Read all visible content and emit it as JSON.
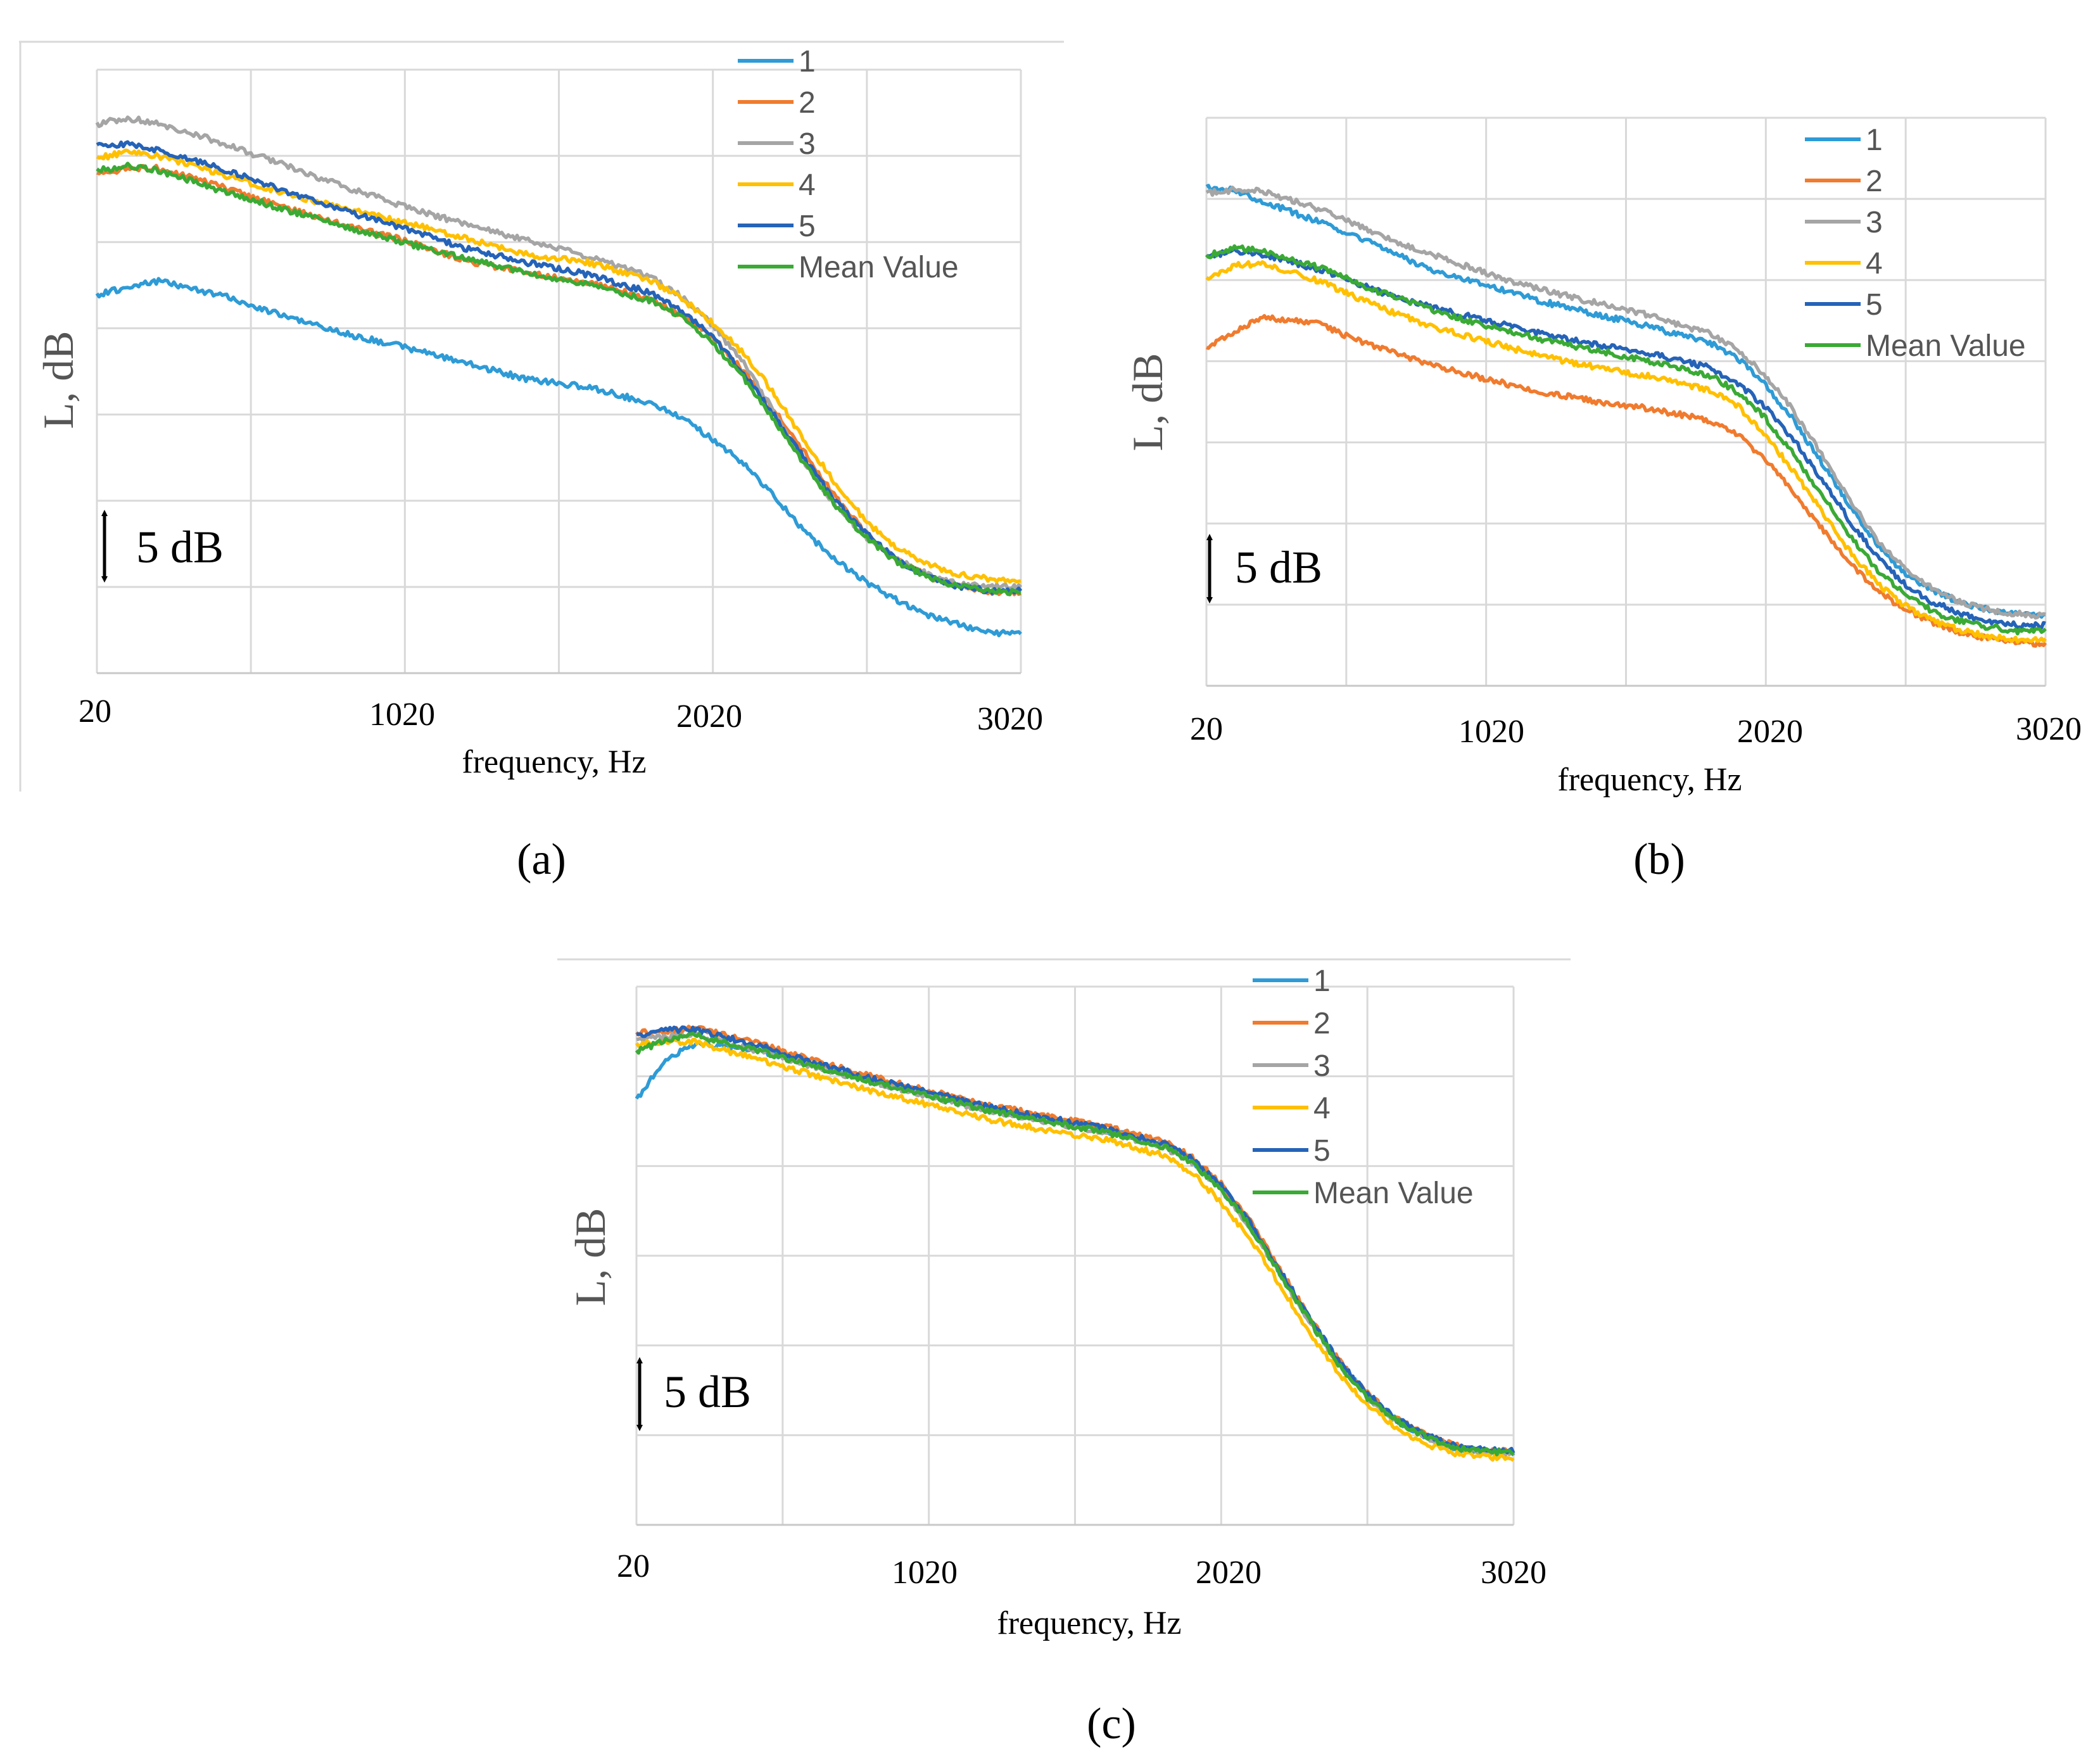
{
  "chart_data": [
    {
      "panel": "a",
      "type": "line",
      "ylabel": "L, dB",
      "xlabel": "frequency, Hz",
      "x_ticks": [
        "20",
        "1020",
        "2020",
        "3020"
      ],
      "xlim": [
        20,
        3020
      ],
      "ylim": [
        0,
        30
      ],
      "scale_bar": "5 dB",
      "grid": true,
      "legend_placement": "top-right",
      "series": [
        {
          "name": "1",
          "color": "#2e9bd6",
          "x": [
            20,
            120,
            220,
            420,
            620,
            820,
            1020,
            1220,
            1420,
            1620,
            1820,
            1920,
            2020,
            2120,
            2220,
            2320,
            2420,
            2520,
            2620,
            2720,
            2820,
            2920,
            3020
          ],
          "values": [
            18.8,
            19.2,
            19.5,
            18.8,
            17.8,
            16.9,
            16.2,
            15.4,
            14.6,
            14.2,
            13.4,
            12.7,
            11.6,
            10.4,
            8.8,
            7.0,
            5.6,
            4.5,
            3.6,
            2.9,
            2.4,
            2.0,
            2.0
          ]
        },
        {
          "name": "2",
          "color": "#f07b2e",
          "x": [
            20,
            120,
            220,
            420,
            620,
            820,
            1020,
            1220,
            1420,
            1620,
            1820,
            1920,
            2020,
            2120,
            2220,
            2320,
            2420,
            2520,
            2620,
            2720,
            2820,
            2920,
            3020
          ],
          "values": [
            24.8,
            25.1,
            25.1,
            24.2,
            23.2,
            22.3,
            21.5,
            20.5,
            19.9,
            19.4,
            18.6,
            17.8,
            16.7,
            15.0,
            13.1,
            10.9,
            8.7,
            6.9,
            5.6,
            4.8,
            4.3,
            4.0,
            4.0
          ]
        },
        {
          "name": "3",
          "color": "#a5a5a5",
          "x": [
            20,
            120,
            220,
            420,
            620,
            820,
            1020,
            1220,
            1420,
            1620,
            1820,
            1920,
            2020,
            2120,
            2220,
            2320,
            2420,
            2520,
            2620,
            2720,
            2820,
            2920,
            3020
          ],
          "values": [
            27.3,
            27.6,
            27.3,
            26.4,
            25.3,
            24.2,
            23.2,
            22.3,
            21.5,
            20.7,
            19.7,
            18.7,
            17.3,
            15.4,
            13.0,
            10.4,
            8.3,
            6.7,
            5.6,
            4.9,
            4.4,
            4.3,
            4.3
          ]
        },
        {
          "name": "4",
          "color": "#ffc000",
          "x": [
            20,
            120,
            220,
            420,
            620,
            820,
            1020,
            1220,
            1420,
            1620,
            1820,
            1920,
            2020,
            2120,
            2220,
            2320,
            2420,
            2520,
            2620,
            2720,
            2820,
            2920,
            3020
          ],
          "values": [
            25.6,
            25.9,
            25.7,
            24.8,
            23.9,
            23.1,
            22.4,
            21.6,
            20.8,
            20.4,
            19.5,
            18.6,
            17.4,
            15.9,
            13.9,
            11.5,
            9.4,
            7.5,
            6.2,
            5.4,
            4.9,
            4.7,
            4.6
          ]
        },
        {
          "name": "5",
          "color": "#2563b8",
          "x": [
            20,
            120,
            220,
            420,
            620,
            820,
            1020,
            1220,
            1420,
            1620,
            1820,
            1920,
            2020,
            2120,
            2220,
            2320,
            2420,
            2520,
            2620,
            2720,
            2820,
            2920,
            3020
          ],
          "values": [
            26.2,
            26.3,
            26.0,
            25.1,
            24.0,
            23.0,
            22.1,
            21.1,
            20.4,
            19.8,
            18.9,
            18.0,
            16.7,
            14.9,
            12.8,
            10.6,
            8.5,
            6.9,
            5.6,
            4.8,
            4.3,
            4.1,
            4.1
          ]
        },
        {
          "name": "Mean Value",
          "color": "#3aaa35",
          "x": [
            20,
            120,
            220,
            420,
            620,
            820,
            1020,
            1220,
            1420,
            1620,
            1820,
            1920,
            2020,
            2120,
            2220,
            2320,
            2420,
            2520,
            2620,
            2720,
            2820,
            2920,
            3020
          ],
          "values": [
            25.0,
            25.2,
            25.0,
            24.0,
            23.1,
            22.2,
            21.4,
            20.6,
            19.9,
            19.3,
            18.5,
            17.7,
            16.4,
            14.7,
            12.5,
            10.3,
            8.3,
            6.7,
            5.5,
            4.8,
            4.3,
            4.1,
            4.0
          ]
        }
      ]
    },
    {
      "panel": "b",
      "type": "line",
      "ylabel": "L, dB",
      "xlabel": "frequency, Hz",
      "x_ticks": [
        "20",
        "1020",
        "2020",
        "3020"
      ],
      "xlim": [
        20,
        3020
      ],
      "ylim": [
        0,
        30
      ],
      "scale_bar": "5 dB",
      "grid": true,
      "legend_placement": "top-right",
      "series": [
        {
          "name": "1",
          "color": "#2e9bd6",
          "x": [
            20,
            120,
            220,
            420,
            620,
            820,
            1020,
            1220,
            1420,
            1620,
            1820,
            1920,
            2020,
            2120,
            2220,
            2320,
            2420,
            2520,
            2620,
            2720,
            2820,
            2920,
            3020
          ],
          "values": [
            26.3,
            26.2,
            25.6,
            24.5,
            23.3,
            22.0,
            21.2,
            20.3,
            19.6,
            18.9,
            18.1,
            17.3,
            15.9,
            14.0,
            11.8,
            9.5,
            7.4,
            5.9,
            5.0,
            4.4,
            4.0,
            3.8,
            3.7
          ]
        },
        {
          "name": "2",
          "color": "#f07b2e",
          "x": [
            20,
            120,
            220,
            420,
            620,
            820,
            1020,
            1220,
            1420,
            1620,
            1820,
            1920,
            2020,
            2120,
            2220,
            2320,
            2420,
            2520,
            2620,
            2720,
            2820,
            2920,
            3020
          ],
          "values": [
            17.8,
            18.7,
            19.5,
            19.1,
            17.9,
            17.0,
            16.2,
            15.5,
            15.0,
            14.6,
            14.0,
            13.3,
            11.9,
            10.2,
            8.3,
            6.5,
            5.0,
            4.0,
            3.3,
            2.8,
            2.5,
            2.3,
            2.2
          ]
        },
        {
          "name": "3",
          "color": "#a5a5a5",
          "x": [
            20,
            120,
            220,
            420,
            620,
            820,
            1020,
            1220,
            1420,
            1620,
            1820,
            1920,
            2020,
            2120,
            2220,
            2320,
            2420,
            2520,
            2620,
            2720,
            2820,
            2920,
            3020
          ],
          "values": [
            26.0,
            26.2,
            26.1,
            25.2,
            23.9,
            22.8,
            21.8,
            20.9,
            20.2,
            19.5,
            18.6,
            17.7,
            16.4,
            14.5,
            12.2,
            9.8,
            7.7,
            6.1,
            5.1,
            4.4,
            4.0,
            3.8,
            3.7
          ]
        },
        {
          "name": "4",
          "color": "#ffc000",
          "x": [
            20,
            120,
            220,
            420,
            620,
            820,
            1020,
            1220,
            1420,
            1620,
            1820,
            1920,
            2020,
            2120,
            2220,
            2320,
            2420,
            2520,
            2620,
            2720,
            2820,
            2920,
            3020
          ],
          "values": [
            21.5,
            22.2,
            22.3,
            21.4,
            20.1,
            19.0,
            18.2,
            17.4,
            16.8,
            16.3,
            15.6,
            14.8,
            13.2,
            11.3,
            9.2,
            7.1,
            5.4,
            4.2,
            3.4,
            2.9,
            2.6,
            2.4,
            2.4
          ]
        },
        {
          "name": "5",
          "color": "#2563b8",
          "x": [
            20,
            120,
            220,
            420,
            620,
            820,
            1020,
            1220,
            1420,
            1620,
            1820,
            1920,
            2020,
            2120,
            2220,
            2320,
            2420,
            2520,
            2620,
            2720,
            2820,
            2920,
            3020
          ],
          "values": [
            22.6,
            23.0,
            22.8,
            22.0,
            20.9,
            20.0,
            19.3,
            18.6,
            18.0,
            17.5,
            16.8,
            16.0,
            14.7,
            13.0,
            10.9,
            8.7,
            6.8,
            5.3,
            4.4,
            3.8,
            3.4,
            3.2,
            3.2
          ]
        },
        {
          "name": "Mean Value",
          "color": "#3aaa35",
          "x": [
            20,
            120,
            220,
            420,
            620,
            820,
            1020,
            1220,
            1420,
            1620,
            1820,
            1920,
            2020,
            2120,
            2220,
            2320,
            2420,
            2520,
            2620,
            2720,
            2820,
            2920,
            3020
          ],
          "values": [
            22.7,
            23.1,
            23.0,
            22.1,
            20.9,
            19.9,
            19.0,
            18.3,
            17.7,
            17.1,
            16.4,
            15.5,
            14.1,
            12.2,
            10.1,
            7.9,
            6.1,
            4.8,
            3.9,
            3.4,
            3.1,
            2.9,
            2.9
          ]
        }
      ]
    },
    {
      "panel": "c",
      "type": "line",
      "ylabel": "L, dB",
      "xlabel": "frequency, Hz",
      "x_ticks": [
        "20",
        "1020",
        "2020",
        "3020"
      ],
      "xlim": [
        20,
        3020
      ],
      "ylim": [
        0,
        30
      ],
      "scale_bar": "5 dB",
      "grid": true,
      "legend_placement": "top-right",
      "series": [
        {
          "name": "1",
          "color": "#2e9bd6",
          "x": [
            20,
            120,
            220,
            420,
            620,
            820,
            1020,
            1220,
            1420,
            1620,
            1820,
            1920,
            2020,
            2120,
            2220,
            2320,
            2420,
            2520,
            2620,
            2720,
            2820,
            2920,
            3020
          ],
          "values": [
            23.7,
            26.0,
            26.8,
            26.5,
            25.7,
            24.8,
            24.0,
            23.2,
            22.6,
            22.0,
            21.2,
            20.3,
            18.8,
            16.7,
            14.1,
            11.5,
            9.1,
            7.2,
            5.8,
            4.9,
            4.3,
            4.1,
            4.0
          ]
        },
        {
          "name": "2",
          "color": "#f07b2e",
          "x": [
            20,
            120,
            220,
            420,
            620,
            820,
            1020,
            1220,
            1420,
            1620,
            1820,
            1920,
            2020,
            2120,
            2220,
            2320,
            2420,
            2520,
            2620,
            2720,
            2820,
            2920,
            3020
          ],
          "values": [
            27.4,
            27.5,
            27.7,
            26.9,
            25.9,
            25.0,
            24.2,
            23.4,
            22.8,
            22.2,
            21.4,
            20.5,
            19.0,
            16.9,
            14.3,
            11.6,
            9.2,
            7.3,
            5.9,
            5.0,
            4.4,
            4.2,
            4.1
          ]
        },
        {
          "name": "3",
          "color": "#a5a5a5",
          "x": [
            20,
            120,
            220,
            420,
            620,
            820,
            1020,
            1220,
            1420,
            1620,
            1820,
            1920,
            2020,
            2120,
            2220,
            2320,
            2420,
            2520,
            2620,
            2720,
            2820,
            2920,
            3020
          ],
          "values": [
            27.0,
            27.2,
            27.3,
            26.5,
            25.6,
            24.7,
            23.9,
            23.1,
            22.5,
            21.9,
            21.1,
            20.2,
            18.7,
            16.6,
            14.0,
            11.4,
            9.0,
            7.1,
            5.8,
            4.9,
            4.3,
            4.0,
            4.0
          ]
        },
        {
          "name": "4",
          "color": "#ffc000",
          "x": [
            20,
            120,
            220,
            420,
            620,
            820,
            1020,
            1220,
            1420,
            1620,
            1820,
            1920,
            2020,
            2120,
            2220,
            2320,
            2420,
            2520,
            2620,
            2720,
            2820,
            2920,
            3020
          ],
          "values": [
            26.8,
            26.9,
            26.9,
            26.0,
            25.1,
            24.2,
            23.4,
            22.6,
            22.0,
            21.5,
            20.6,
            19.6,
            18.0,
            15.9,
            13.4,
            10.8,
            8.5,
            6.7,
            5.4,
            4.5,
            4.0,
            3.8,
            3.7
          ]
        },
        {
          "name": "5",
          "color": "#2563b8",
          "x": [
            20,
            120,
            220,
            420,
            620,
            820,
            1020,
            1220,
            1420,
            1620,
            1820,
            1920,
            2020,
            2120,
            2220,
            2320,
            2420,
            2520,
            2620,
            2720,
            2820,
            2920,
            3020
          ],
          "values": [
            27.3,
            27.6,
            27.6,
            26.8,
            25.8,
            24.9,
            24.1,
            23.3,
            22.7,
            22.1,
            21.3,
            20.4,
            18.9,
            16.8,
            14.2,
            11.6,
            9.2,
            7.3,
            5.9,
            5.0,
            4.4,
            4.2,
            4.1
          ]
        },
        {
          "name": "Mean Value",
          "color": "#3aaa35",
          "x": [
            20,
            120,
            220,
            420,
            620,
            820,
            1020,
            1220,
            1420,
            1620,
            1820,
            1920,
            2020,
            2120,
            2220,
            2320,
            2420,
            2520,
            2620,
            2720,
            2820,
            2920,
            3020
          ],
          "values": [
            26.4,
            27.0,
            27.3,
            26.5,
            25.6,
            24.7,
            23.9,
            23.1,
            22.5,
            21.9,
            21.1,
            20.2,
            18.7,
            16.6,
            14.0,
            11.4,
            9.0,
            7.1,
            5.8,
            4.9,
            4.3,
            4.1,
            4.0
          ]
        }
      ]
    }
  ],
  "panel_labels": [
    "(a)",
    "(b)",
    "(c)"
  ]
}
